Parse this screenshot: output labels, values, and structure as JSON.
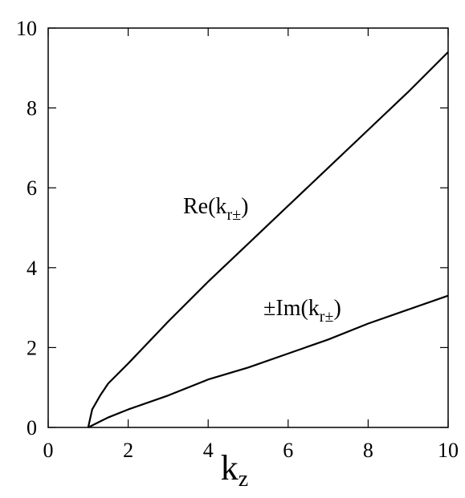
{
  "chart_data": {
    "type": "line",
    "x_label": {
      "main": "k",
      "sub": "z"
    },
    "x": [
      1,
      1.1,
      1.3,
      1.5,
      2,
      3,
      4,
      5,
      6,
      7,
      8,
      9,
      10
    ],
    "series": [
      {
        "color": "#000000",
        "values": [
          0,
          0.45,
          0.8,
          1.1,
          1.6,
          2.65,
          3.65,
          4.6,
          5.55,
          6.5,
          7.45,
          8.4,
          9.4
        ]
      },
      {
        "color": "#000000",
        "values": [
          0,
          0.05,
          0.15,
          0.25,
          0.45,
          0.8,
          1.2,
          1.5,
          1.85,
          2.2,
          2.6,
          2.95,
          3.3
        ]
      }
    ],
    "annotations": [
      {
        "main": "Re(k",
        "sub": "r±",
        "close": ")"
      },
      {
        "main": "±Im(k",
        "sub": "r±",
        "close": ")"
      }
    ],
    "xlim": [
      0,
      10
    ],
    "xticks": [
      0,
      2,
      4,
      6,
      8,
      10
    ],
    "ylim": [
      0,
      10
    ],
    "yticks": [
      0,
      2,
      4,
      6,
      8,
      10
    ]
  }
}
